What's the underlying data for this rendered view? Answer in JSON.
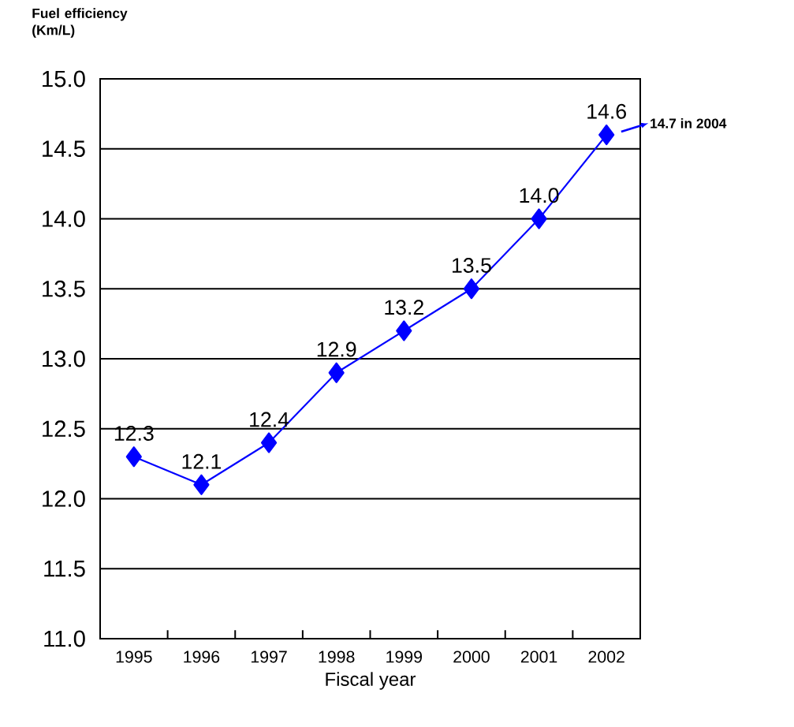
{
  "chart_data": {
    "type": "line",
    "ylabel": "Fuel efficiency (Km/L)",
    "xlabel": "Fiscal year",
    "categories": [
      "1995",
      "1996",
      "1997",
      "1998",
      "1999",
      "2000",
      "2001",
      "2002"
    ],
    "values": [
      12.3,
      12.1,
      12.4,
      12.9,
      13.2,
      13.5,
      14.0,
      14.6
    ],
    "value_labels": [
      "12.3",
      "12.1",
      "12.4",
      "12.9",
      "13.2",
      "13.5",
      "14.0",
      "14.6"
    ],
    "color": "#0000ff",
    "marker": "diamond",
    "line_style": "solid",
    "grid": "y",
    "ylim": [
      11,
      15
    ],
    "yticks": [
      {
        "value": 11,
        "label": "11.0"
      },
      {
        "value": 11.5,
        "label": "11.5"
      },
      {
        "value": 12,
        "label": "12.0"
      },
      {
        "value": 12.5,
        "label": "12.5"
      },
      {
        "value": 13,
        "label": "13.0"
      },
      {
        "value": 13.5,
        "label": "13.5"
      },
      {
        "value": 14,
        "label": "14.0"
      },
      {
        "value": 14.5,
        "label": "14.5"
      },
      {
        "value": 15,
        "label": "15.0"
      }
    ],
    "annotations": [
      "14.7 in 2004"
    ]
  }
}
